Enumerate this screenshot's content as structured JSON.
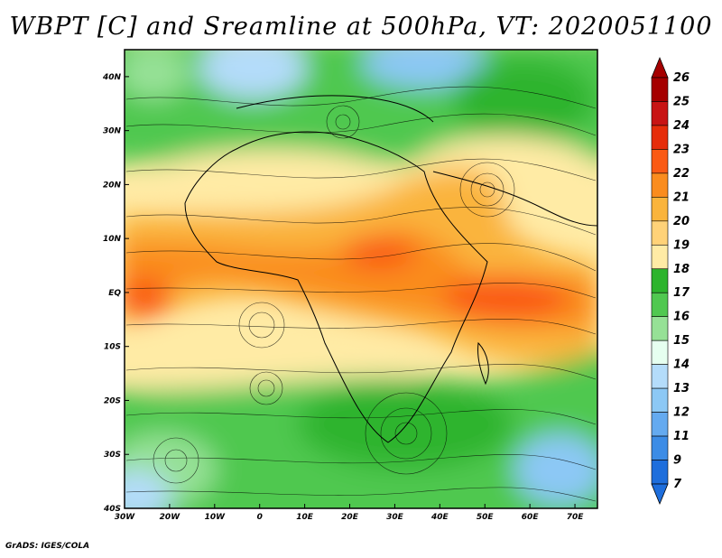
{
  "title": "WBPT [C] and Sreamline at 500hPa, VT: 2020051100",
  "credit": "GrADS: IGES/COLA",
  "map": {
    "lon_range": [
      -30,
      75
    ],
    "lat_range": [
      -40,
      45
    ],
    "lon_ticks": [
      {
        "value": -30,
        "label": "30W"
      },
      {
        "value": -20,
        "label": "20W"
      },
      {
        "value": -10,
        "label": "10W"
      },
      {
        "value": 0,
        "label": "0"
      },
      {
        "value": 10,
        "label": "10E"
      },
      {
        "value": 20,
        "label": "20E"
      },
      {
        "value": 30,
        "label": "30E"
      },
      {
        "value": 40,
        "label": "40E"
      },
      {
        "value": 50,
        "label": "50E"
      },
      {
        "value": 60,
        "label": "60E"
      },
      {
        "value": 70,
        "label": "70E"
      }
    ],
    "lat_ticks": [
      {
        "value": 40,
        "label": "40N"
      },
      {
        "value": 30,
        "label": "30N"
      },
      {
        "value": 20,
        "label": "20N"
      },
      {
        "value": 10,
        "label": "10N"
      },
      {
        "value": 0,
        "label": "EQ"
      },
      {
        "value": -10,
        "label": "10S"
      },
      {
        "value": -20,
        "label": "20S"
      },
      {
        "value": -30,
        "label": "30S"
      },
      {
        "value": -40,
        "label": "40S"
      }
    ]
  },
  "colorbar": {
    "labels": [
      "26",
      "25",
      "24",
      "23",
      "22",
      "21",
      "20",
      "19",
      "18",
      "17",
      "16",
      "15",
      "14",
      "13",
      "12",
      "11",
      "9",
      "7"
    ],
    "colors": [
      "#a50000",
      "#c81414",
      "#e62d0a",
      "#fa5a14",
      "#fa8c1e",
      "#fab43c",
      "#ffd278",
      "#ffeba5",
      "#2db42d",
      "#50c850",
      "#96e196",
      "#e6fff0",
      "#b4dcfa",
      "#8cc8f5",
      "#64aaf0",
      "#3c8ce6",
      "#1e6edc"
    ],
    "top_arrow_color": "#a50000",
    "bottom_arrow_color": "#1e6edc"
  }
}
